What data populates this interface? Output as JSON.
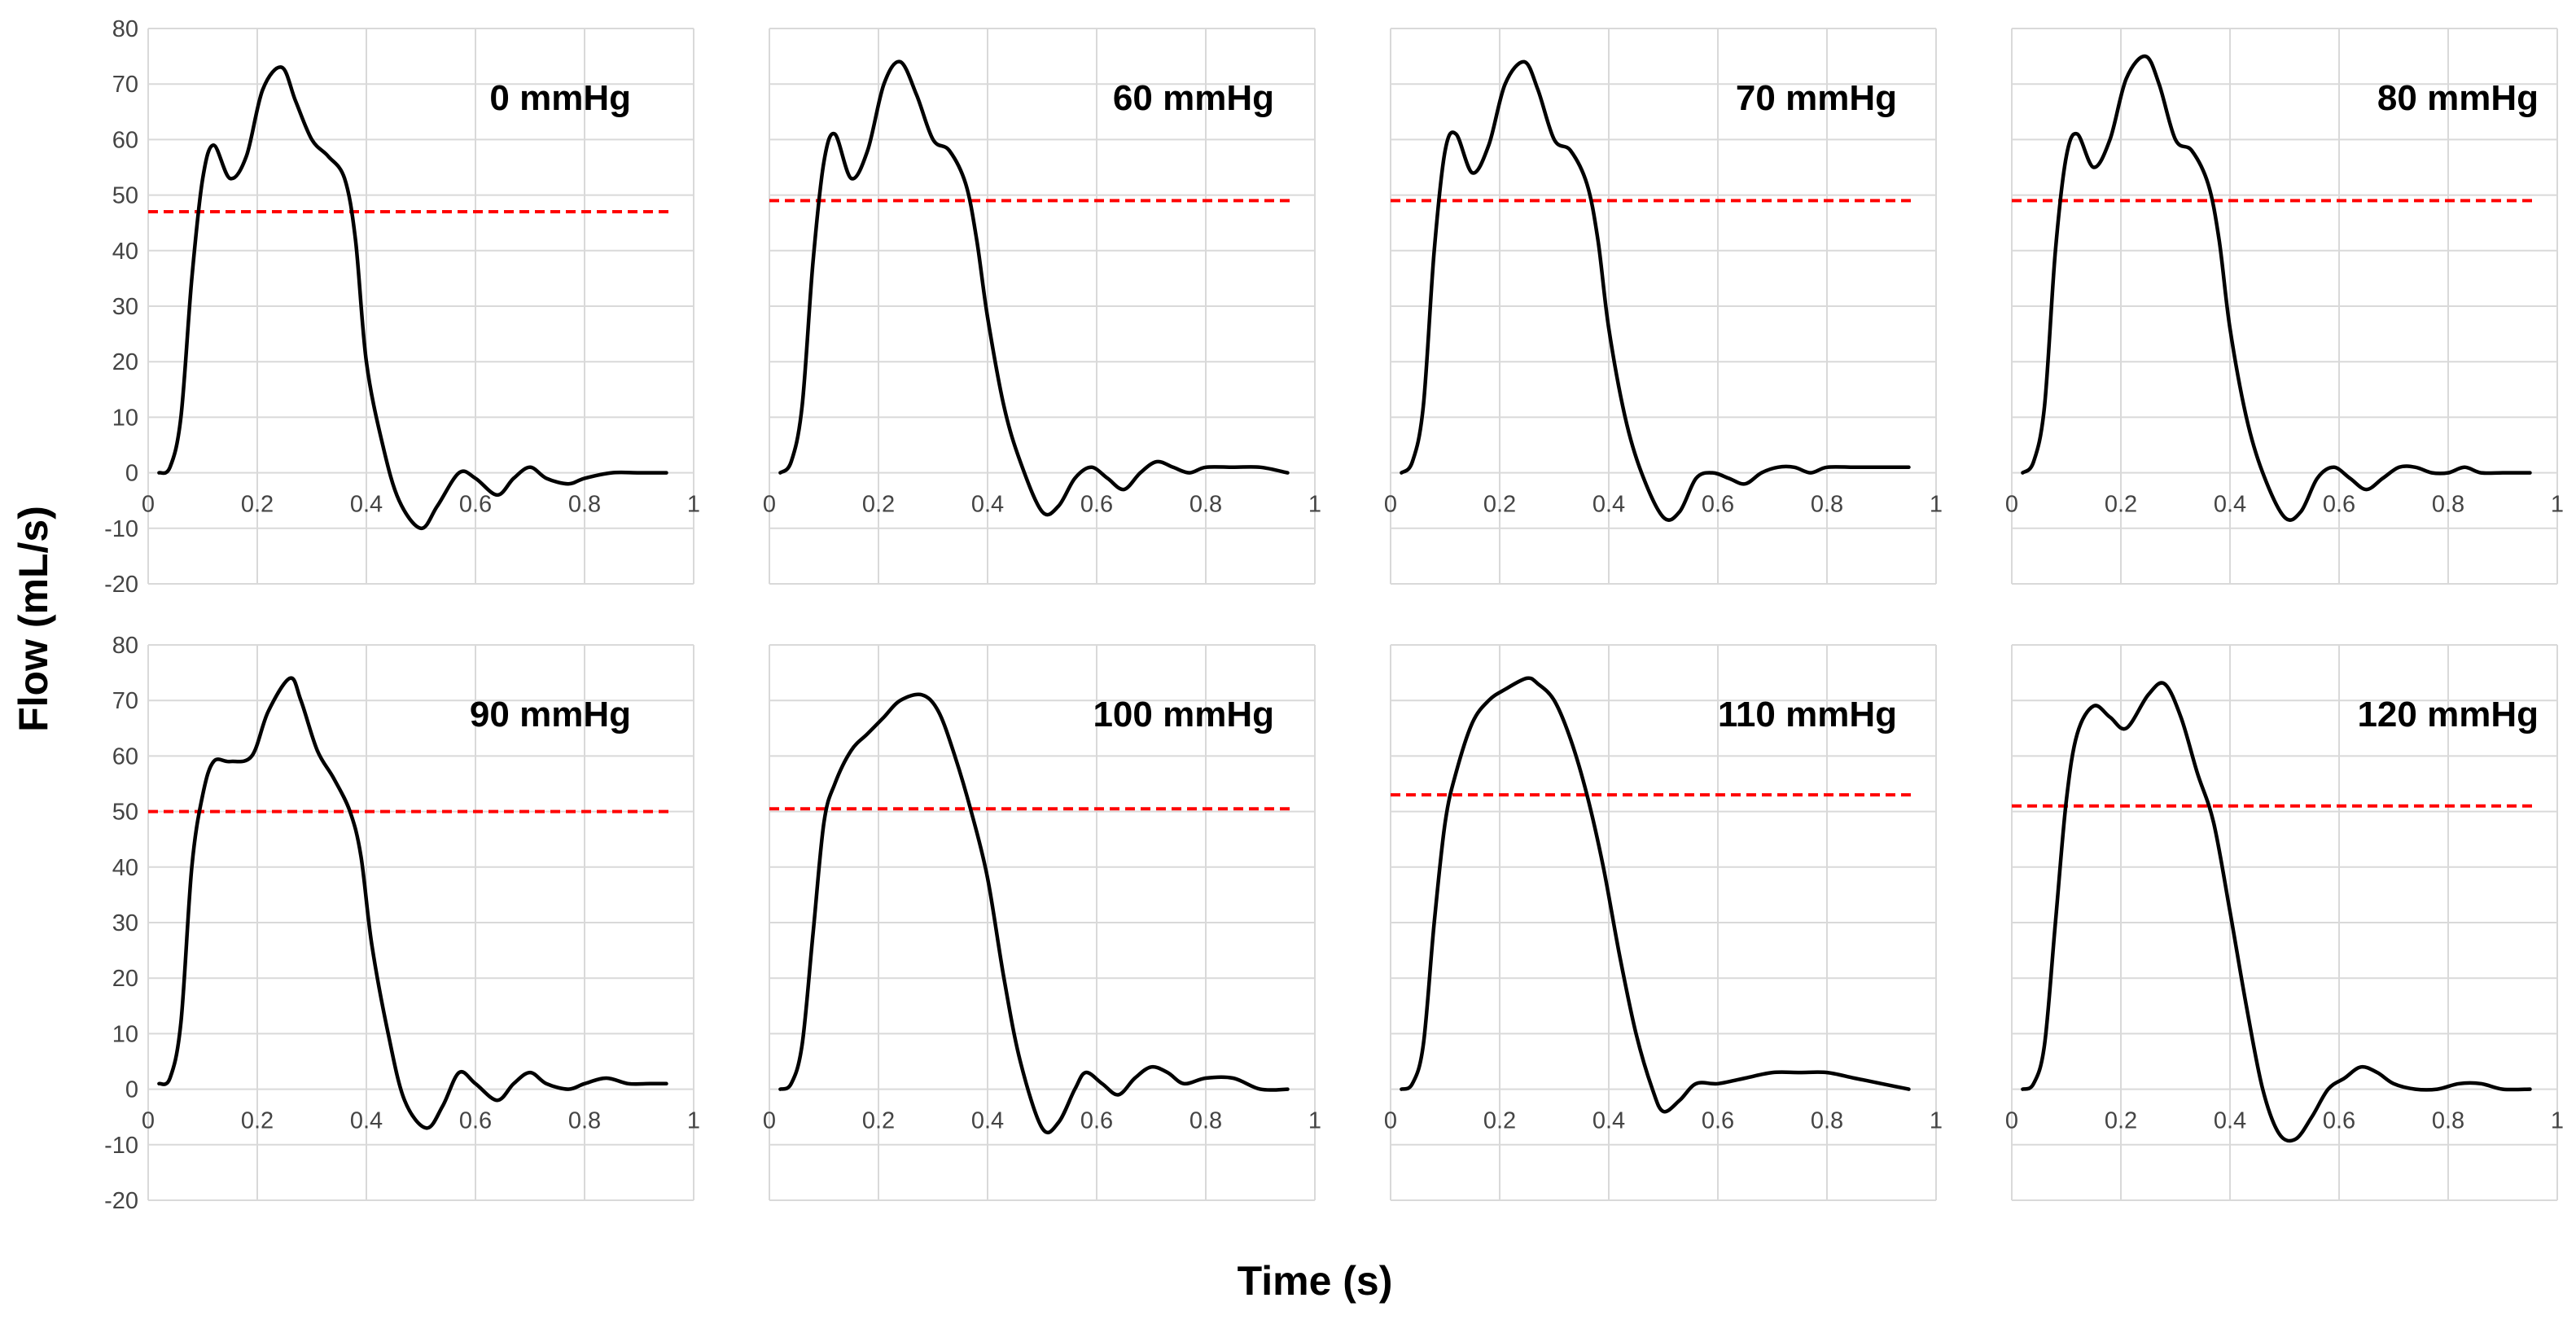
{
  "colors": {
    "flow_line": "#000000",
    "mean_line": "#ff0000",
    "grid": "#d9d9d9",
    "tick_text": "#444444"
  },
  "chart_data": {
    "type": "line",
    "xlabel": "Time (s)",
    "ylabel": "Flow (mL/s)",
    "xlim": [
      0,
      1
    ],
    "ylim": [
      -20,
      80
    ],
    "xticks": [
      "0",
      "0.2",
      "0.4",
      "0.6",
      "0.8",
      "1"
    ],
    "yticks": [
      "80",
      "70",
      "60",
      "50",
      "40",
      "30",
      "20",
      "10",
      "0",
      "-10",
      "-20"
    ],
    "grid": true,
    "panels": [
      {
        "label": "0 mmHg",
        "mean_flow": 47,
        "series": [
          {
            "name": "flow",
            "x": [
              0.02,
              0.04,
              0.06,
              0.08,
              0.1,
              0.12,
              0.15,
              0.18,
              0.21,
              0.245,
              0.27,
              0.3,
              0.33,
              0.36,
              0.38,
              0.4,
              0.43,
              0.46,
              0.5,
              0.53,
              0.57,
              0.6,
              0.64,
              0.67,
              0.7,
              0.73,
              0.77,
              0.8,
              0.85,
              0.9,
              0.95
            ],
            "y": [
              0,
              1,
              10,
              35,
              53,
              59,
              53,
              57,
              69,
              73,
              67,
              60,
              57,
              53,
              42,
              20,
              5,
              -5,
              -10,
              -6,
              0,
              -1,
              -4,
              -1,
              1,
              -1,
              -2,
              -1,
              0,
              0,
              0
            ]
          }
        ]
      },
      {
        "label": "60 mmHg",
        "mean_flow": 49,
        "series": [
          {
            "name": "flow",
            "x": [
              0.02,
              0.04,
              0.06,
              0.08,
              0.1,
              0.12,
              0.15,
              0.18,
              0.21,
              0.24,
              0.27,
              0.3,
              0.33,
              0.36,
              0.38,
              0.4,
              0.43,
              0.46,
              0.5,
              0.53,
              0.56,
              0.59,
              0.62,
              0.65,
              0.68,
              0.71,
              0.74,
              0.77,
              0.8,
              0.85,
              0.9,
              0.95
            ],
            "y": [
              0,
              2,
              12,
              38,
              56,
              61,
              53,
              58,
              70,
              74,
              68,
              60,
              58,
              52,
              42,
              28,
              12,
              2,
              -7,
              -6,
              -1,
              1,
              -1,
              -3,
              0,
              2,
              1,
              0,
              1,
              1,
              1,
              0
            ]
          }
        ]
      },
      {
        "label": "70 mmHg",
        "mean_flow": 49,
        "series": [
          {
            "name": "flow",
            "x": [
              0.02,
              0.04,
              0.06,
              0.08,
              0.1,
              0.12,
              0.15,
              0.18,
              0.21,
              0.245,
              0.27,
              0.3,
              0.33,
              0.36,
              0.38,
              0.4,
              0.43,
              0.46,
              0.5,
              0.53,
              0.56,
              0.59,
              0.62,
              0.65,
              0.68,
              0.71,
              0.74,
              0.77,
              0.8,
              0.85,
              0.9,
              0.95
            ],
            "y": [
              0,
              2,
              12,
              40,
              58,
              61,
              54,
              59,
              70,
              74,
              69,
              60,
              58,
              52,
              42,
              26,
              10,
              0,
              -8,
              -7,
              -1,
              0,
              -1,
              -2,
              0,
              1,
              1,
              0,
              1,
              1,
              1,
              1
            ]
          }
        ]
      },
      {
        "label": "80 mmHg",
        "mean_flow": 49,
        "series": [
          {
            "name": "flow",
            "x": [
              0.02,
              0.04,
              0.06,
              0.08,
              0.1,
              0.12,
              0.15,
              0.18,
              0.21,
              0.245,
              0.27,
              0.3,
              0.33,
              0.36,
              0.38,
              0.4,
              0.43,
              0.46,
              0.5,
              0.53,
              0.56,
              0.59,
              0.62,
              0.65,
              0.68,
              0.71,
              0.74,
              0.77,
              0.8,
              0.83,
              0.86,
              0.9,
              0.95
            ],
            "y": [
              0,
              2,
              12,
              40,
              57,
              61,
              55,
              60,
              71,
              75,
              70,
              60,
              58,
              52,
              42,
              26,
              10,
              0,
              -8,
              -7,
              -1,
              1,
              -1,
              -3,
              -1,
              1,
              1,
              0,
              0,
              1,
              0,
              0,
              0
            ]
          }
        ]
      },
      {
        "label": "90 mmHg",
        "mean_flow": 50,
        "series": [
          {
            "name": "flow",
            "x": [
              0.02,
              0.04,
              0.06,
              0.08,
              0.1,
              0.12,
              0.15,
              0.19,
              0.22,
              0.26,
              0.28,
              0.31,
              0.34,
              0.37,
              0.39,
              0.41,
              0.44,
              0.47,
              0.51,
              0.54,
              0.57,
              0.6,
              0.64,
              0.67,
              0.7,
              0.73,
              0.77,
              0.8,
              0.84,
              0.88,
              0.92,
              0.95
            ],
            "y": [
              1,
              2,
              12,
              40,
              53,
              59,
              59,
              60,
              68,
              74,
              70,
              61,
              56,
              50,
              42,
              26,
              10,
              -2,
              -7,
              -3,
              3,
              1,
              -2,
              1,
              3,
              1,
              0,
              1,
              2,
              1,
              1,
              1
            ]
          }
        ]
      },
      {
        "label": "100 mmHg",
        "mean_flow": 50.5,
        "series": [
          {
            "name": "flow",
            "x": [
              0.02,
              0.04,
              0.06,
              0.08,
              0.1,
              0.12,
              0.15,
              0.18,
              0.21,
              0.24,
              0.28,
              0.31,
              0.34,
              0.37,
              0.4,
              0.43,
              0.46,
              0.5,
              0.53,
              0.56,
              0.58,
              0.61,
              0.64,
              0.67,
              0.7,
              0.73,
              0.76,
              0.8,
              0.85,
              0.9,
              0.95
            ],
            "y": [
              0,
              1,
              8,
              28,
              48,
              55,
              61,
              64,
              67,
              70,
              71,
              68,
              60,
              50,
              38,
              20,
              5,
              -7,
              -6,
              0,
              3,
              1,
              -1,
              2,
              4,
              3,
              1,
              2,
              2,
              0,
              0
            ]
          }
        ]
      },
      {
        "label": "110 mmHg",
        "mean_flow": 53,
        "series": [
          {
            "name": "flow",
            "x": [
              0.02,
              0.04,
              0.06,
              0.08,
              0.1,
              0.12,
              0.15,
              0.18,
              0.21,
              0.25,
              0.27,
              0.3,
              0.33,
              0.36,
              0.39,
              0.42,
              0.45,
              0.48,
              0.5,
              0.53,
              0.56,
              0.6,
              0.65,
              0.7,
              0.75,
              0.8,
              0.85,
              0.9,
              0.95
            ],
            "y": [
              0,
              1,
              8,
              30,
              48,
              57,
              66,
              70,
              72,
              74,
              73,
              70,
              63,
              53,
              40,
              24,
              10,
              0,
              -4,
              -2,
              1,
              1,
              2,
              3,
              3,
              3,
              2,
              1,
              0
            ]
          }
        ]
      },
      {
        "label": "120 mmHg",
        "mean_flow": 51,
        "series": [
          {
            "name": "flow",
            "x": [
              0.02,
              0.04,
              0.06,
              0.08,
              0.1,
              0.12,
              0.15,
              0.18,
              0.21,
              0.25,
              0.28,
              0.31,
              0.34,
              0.37,
              0.4,
              0.43,
              0.46,
              0.49,
              0.52,
              0.55,
              0.58,
              0.61,
              0.64,
              0.67,
              0.7,
              0.74,
              0.78,
              0.82,
              0.86,
              0.9,
              0.95
            ],
            "y": [
              0,
              1,
              8,
              30,
              52,
              64,
              69,
              67,
              65,
              71,
              73,
              67,
              57,
              48,
              32,
              15,
              0,
              -8,
              -9,
              -5,
              0,
              2,
              4,
              3,
              1,
              0,
              0,
              1,
              1,
              0,
              0
            ]
          }
        ]
      }
    ]
  }
}
